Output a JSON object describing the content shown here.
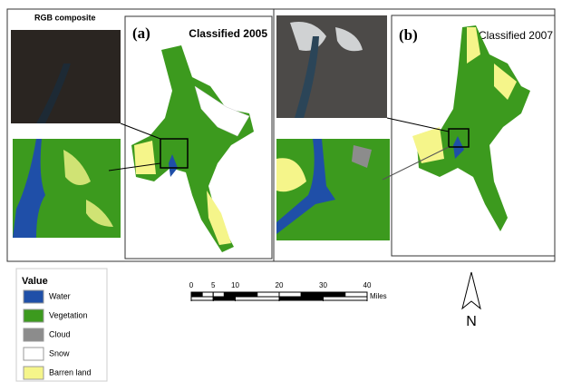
{
  "panel_a": {
    "inset_title": "RGB composite",
    "label": "(a)",
    "title": "Classified 2005"
  },
  "panel_b": {
    "label": "(b)",
    "title": "Classified 2007"
  },
  "legend": {
    "title": "Value",
    "items": [
      {
        "name": "Water",
        "color": "#1f4fa8"
      },
      {
        "name": "Vegetation",
        "color": "#3c9a1e"
      },
      {
        "name": "Cloud",
        "color": "#8c8c8c"
      },
      {
        "name": "Snow",
        "color": "#ffffff"
      },
      {
        "name": "Barren land",
        "color": "#f5f58a"
      }
    ]
  },
  "scale_bar": {
    "ticks": [
      0,
      5,
      10,
      20,
      30,
      40
    ],
    "unit": "Miles"
  },
  "north_arrow": {
    "label": "N"
  }
}
